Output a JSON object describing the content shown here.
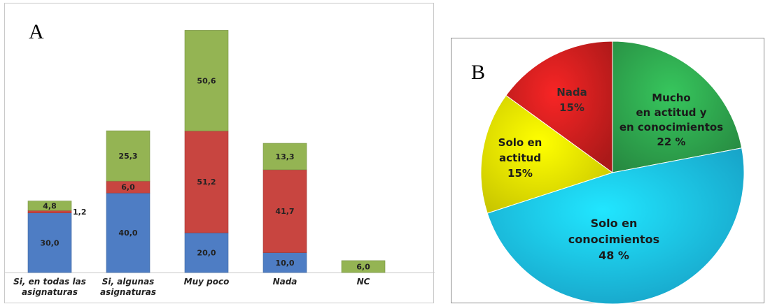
{
  "chart_data": [
    {
      "type": "bar",
      "stacked": true,
      "panel_label": "A",
      "title": "",
      "xlabel": "",
      "ylabel": "",
      "grid": false,
      "legend": "none",
      "categories": [
        "Si, en todas las asignaturas",
        "Si, algunas asignaturas",
        "Muy poco",
        "Nada",
        "NC"
      ],
      "category_lines": [
        [
          "Si, en todas las",
          "asignaturas"
        ],
        [
          "Si, algunas",
          "asignaturas"
        ],
        [
          "Muy poco"
        ],
        [
          "Nada"
        ],
        [
          "NC"
        ]
      ],
      "series": [
        {
          "color": "#4e7dc4",
          "values": [
            30.0,
            40.0,
            20.0,
            10.0,
            0
          ]
        },
        {
          "color": "#c84540",
          "values": [
            1.2,
            6.0,
            51.2,
            41.7,
            0
          ]
        },
        {
          "color": "#94b453",
          "values": [
            4.8,
            25.3,
            50.6,
            13.3,
            6.0
          ]
        }
      ],
      "value_labels": [
        [
          "30,0",
          "1,2",
          "4,8"
        ],
        [
          "40,0",
          "6,0",
          "25,3"
        ],
        [
          "20,0",
          "51,2",
          "50,6"
        ],
        [
          "10,0",
          "41,7",
          "13,3"
        ],
        [
          "",
          "",
          "6,0"
        ]
      ],
      "ylim": [
        0,
        123
      ]
    },
    {
      "type": "pie",
      "panel_label": "B",
      "title": "",
      "legend": "none",
      "slices": [
        {
          "lines": [
            "Mucho",
            "en actitud y",
            "en conocimientos",
            "22 %"
          ],
          "value": 22,
          "color": "#2fa84f"
        },
        {
          "lines": [
            "Solo en",
            "conocimientos",
            "48 %"
          ],
          "value": 48,
          "color": "#1cc3f0"
        },
        {
          "lines": [
            "Solo en",
            "actitud",
            "15%"
          ],
          "value": 15,
          "color": "#f4f000"
        },
        {
          "lines": [
            "Nada",
            "15%"
          ],
          "value": 15,
          "color": "#d11f1f"
        }
      ]
    }
  ]
}
